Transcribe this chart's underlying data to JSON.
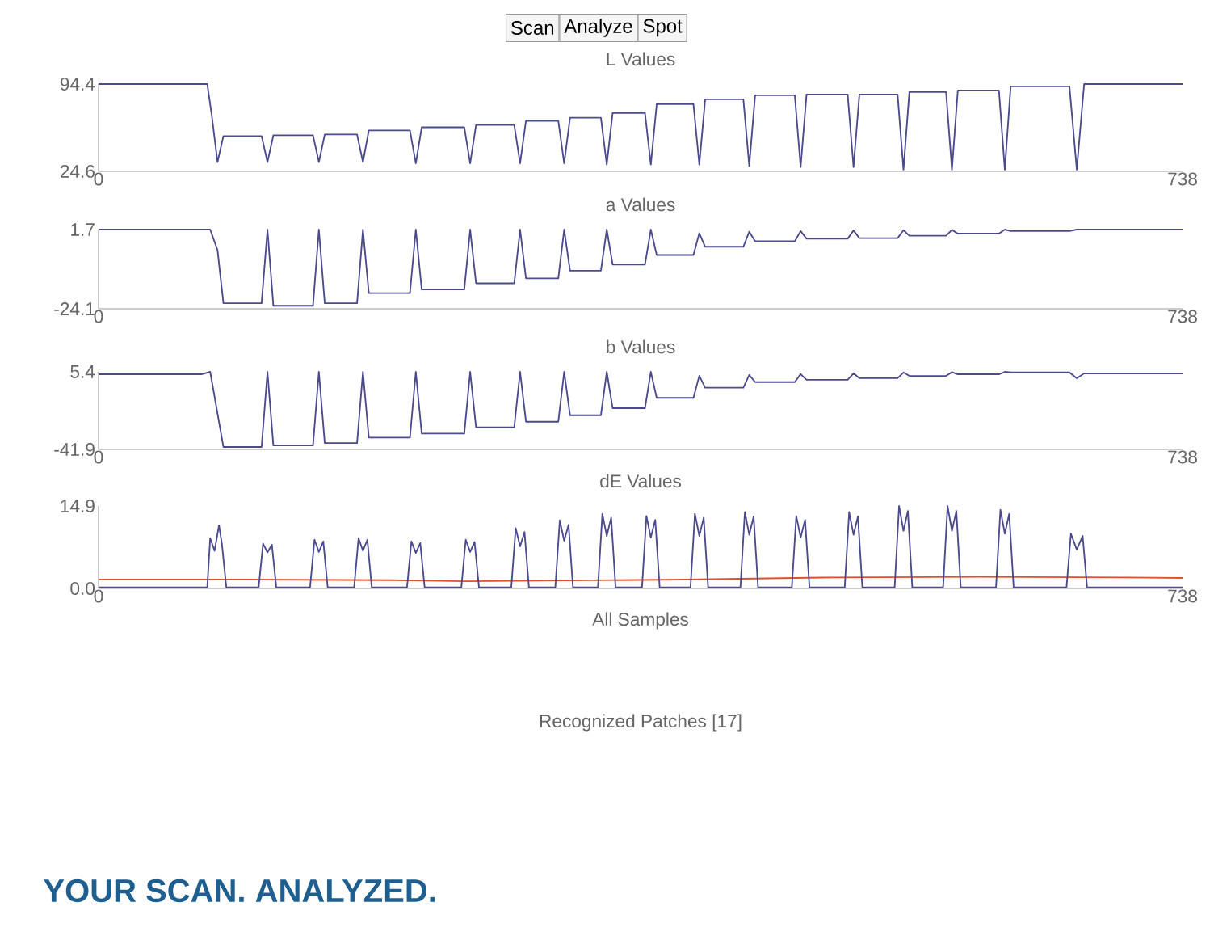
{
  "chart_data": [
    {
      "type": "line",
      "title": "L Values",
      "annotations": [
        "Scan",
        "Analyze",
        "Spot"
      ],
      "xlim": [
        0,
        738
      ],
      "xticks": [
        0,
        738
      ],
      "ylim": [
        24.6,
        94.4
      ],
      "yticks": [
        24.6,
        94.4
      ],
      "series": [
        {
          "color": "#4a4a8c",
          "x": [
            0,
            74,
            77,
            81,
            85,
            111,
            115,
            119,
            146,
            150,
            154,
            176,
            180,
            184,
            212,
            216,
            220,
            249,
            253,
            257,
            283,
            287,
            291,
            313,
            317,
            321,
            342,
            346,
            350,
            372,
            376,
            380,
            405,
            409,
            413,
            439,
            443,
            447,
            474,
            478,
            482,
            510,
            514,
            518,
            544,
            548,
            552,
            577,
            581,
            585,
            613,
            617,
            621,
            661,
            666,
            671,
            738
          ],
          "values": [
            94.4,
            94.4,
            70,
            32,
            52.8,
            52.8,
            32,
            53.4,
            53.4,
            32,
            54.1,
            54.1,
            32,
            57.3,
            57.3,
            31,
            59.8,
            59.8,
            31,
            61.7,
            61.7,
            31,
            65.0,
            65.0,
            31,
            67.5,
            67.5,
            30,
            71.3,
            71.3,
            30,
            78.4,
            78.4,
            30,
            82.2,
            82.2,
            29,
            85.4,
            85.4,
            28,
            86.1,
            86.1,
            28,
            86.1,
            86.1,
            26,
            88.0,
            88.0,
            26,
            89.3,
            89.3,
            26,
            92.5,
            92.5,
            26,
            94.4,
            94.4
          ]
        }
      ]
    },
    {
      "type": "line",
      "title": "a Values",
      "xlim": [
        0,
        738
      ],
      "xticks": [
        0,
        738
      ],
      "ylim": [
        -24.1,
        1.7
      ],
      "yticks": [
        -24.1,
        1.7
      ],
      "series": [
        {
          "color": "#4a4a8c",
          "x": [
            0,
            76,
            81,
            85,
            111,
            115,
            119,
            146,
            150,
            154,
            176,
            180,
            184,
            212,
            216,
            220,
            249,
            253,
            257,
            283,
            287,
            291,
            313,
            317,
            321,
            342,
            346,
            350,
            372,
            376,
            380,
            405,
            409,
            413,
            439,
            443,
            447,
            474,
            478,
            482,
            510,
            514,
            518,
            544,
            548,
            552,
            577,
            581,
            585,
            613,
            617,
            621,
            661,
            666,
            671,
            738
          ],
          "values": [
            1.7,
            1.7,
            -5,
            -22.3,
            -22.3,
            1.7,
            -23.1,
            -23.1,
            1.7,
            -22.3,
            -22.3,
            1.7,
            -19.0,
            -19.0,
            1.7,
            -17.8,
            -17.8,
            1.7,
            -15.8,
            -15.8,
            1.7,
            -14.2,
            -14.2,
            1.7,
            -11.7,
            -11.7,
            1.7,
            -9.7,
            -9.7,
            1.7,
            -6.6,
            -6.6,
            0.5,
            -3.9,
            -3.9,
            1.0,
            -2.1,
            -2.1,
            1.2,
            -1.3,
            -1.3,
            1.4,
            -1.1,
            -1.1,
            1.5,
            -0.3,
            -0.3,
            1.6,
            0.4,
            0.4,
            1.7,
            1.2,
            1.2,
            1.7,
            1.7,
            1.7
          ]
        }
      ]
    },
    {
      "type": "line",
      "title": "b Values",
      "xlim": [
        0,
        738
      ],
      "xticks": [
        0,
        738
      ],
      "ylim": [
        -41.9,
        5.4
      ],
      "yticks": [
        -41.9,
        5.4
      ],
      "series": [
        {
          "color": "#4a4a8c",
          "x": [
            0,
            70,
            76,
            81,
            85,
            111,
            115,
            119,
            146,
            150,
            154,
            176,
            180,
            184,
            212,
            216,
            220,
            249,
            253,
            257,
            283,
            287,
            291,
            313,
            317,
            321,
            342,
            346,
            350,
            372,
            376,
            380,
            405,
            409,
            413,
            439,
            443,
            447,
            474,
            478,
            482,
            510,
            514,
            518,
            544,
            548,
            552,
            577,
            581,
            585,
            613,
            617,
            621,
            661,
            666,
            671,
            738
          ],
          "values": [
            3.9,
            3.9,
            5.4,
            -20,
            -40.4,
            -40.4,
            5.4,
            -39.5,
            -39.5,
            5.4,
            -38.0,
            -38.0,
            5.4,
            -34.7,
            -34.7,
            5.4,
            -32.2,
            -32.2,
            5.4,
            -28.4,
            -28.4,
            5.4,
            -25.0,
            -25.0,
            5.4,
            -21.1,
            -21.1,
            5.4,
            -16.8,
            -16.8,
            5.4,
            -10.5,
            -10.5,
            3.0,
            -4.3,
            -4.3,
            3.5,
            -0.9,
            -0.9,
            4.0,
            0.5,
            0.5,
            4.5,
            1.5,
            1.5,
            5.0,
            2.9,
            2.9,
            5.2,
            3.9,
            3.9,
            5.4,
            5.0,
            5.0,
            1.5,
            4.4,
            4.4
          ]
        }
      ]
    },
    {
      "type": "line",
      "title": "dE Values",
      "xlim": [
        0,
        738
      ],
      "xticks": [
        0,
        738
      ],
      "ylim": [
        0,
        14.9
      ],
      "yticks": [
        {
          "value": 0,
          "label": "0.0"
        },
        14.9
      ],
      "series": [
        {
          "color": "#e0502a",
          "x": [
            0,
            100,
            200,
            250,
            300,
            400,
            500,
            600,
            700,
            738
          ],
          "values": [
            1.6,
            1.6,
            1.5,
            1.3,
            1.4,
            1.6,
            2.0,
            2.1,
            2.0,
            1.9
          ]
        },
        {
          "color": "#4a4a8c",
          "x": [
            0,
            74,
            76,
            79,
            82,
            84,
            87,
            109,
            112,
            115,
            118,
            121,
            144,
            147,
            150,
            153,
            156,
            174,
            177,
            180,
            183,
            186,
            210,
            213,
            216,
            219,
            222,
            247,
            250,
            253,
            256,
            259,
            281,
            284,
            287,
            290,
            293,
            311,
            314,
            317,
            320,
            323,
            340,
            343,
            346,
            349,
            352,
            370,
            373,
            376,
            379,
            382,
            403,
            406,
            409,
            412,
            415,
            437,
            440,
            443,
            446,
            449,
            472,
            475,
            478,
            481,
            484,
            508,
            511,
            514,
            517,
            520,
            542,
            545,
            548,
            551,
            554,
            575,
            578,
            581,
            584,
            587,
            611,
            614,
            617,
            620,
            623,
            659,
            662,
            666,
            670,
            673,
            738
          ],
          "values": [
            0.2,
            0.2,
            9.1,
            6.8,
            11.4,
            8.0,
            0.2,
            0.2,
            8.1,
            6.5,
            7.9,
            0.2,
            0.2,
            8.8,
            6.6,
            8.5,
            0.2,
            0.2,
            9.1,
            6.8,
            8.8,
            0.2,
            0.2,
            8.5,
            6.4,
            8.2,
            0.2,
            0.2,
            8.8,
            6.6,
            8.4,
            0.2,
            0.2,
            10.9,
            7.6,
            10.2,
            0.2,
            0.2,
            12.3,
            8.6,
            11.5,
            0.2,
            0.2,
            13.5,
            9.5,
            12.8,
            0.2,
            0.2,
            13.1,
            9.2,
            12.4,
            0.2,
            0.2,
            13.5,
            9.5,
            12.8,
            0.2,
            0.2,
            13.8,
            9.7,
            13.0,
            0.2,
            0.2,
            13.1,
            9.2,
            12.4,
            0.2,
            0.2,
            13.8,
            9.7,
            13.0,
            0.2,
            0.2,
            14.9,
            10.4,
            14.0,
            0.2,
            0.2,
            14.9,
            10.4,
            14.0,
            0.2,
            0.2,
            14.2,
            9.9,
            13.5,
            0.2,
            0.2,
            9.9,
            7.0,
            9.5,
            0.2,
            0.2
          ]
        }
      ]
    },
    {
      "type": "other",
      "title": "All Samples"
    },
    {
      "type": "other",
      "title": "Recognized Patches  [17]",
      "annotations": [
        "YOUR SCAN. ANALYZED."
      ]
    }
  ]
}
